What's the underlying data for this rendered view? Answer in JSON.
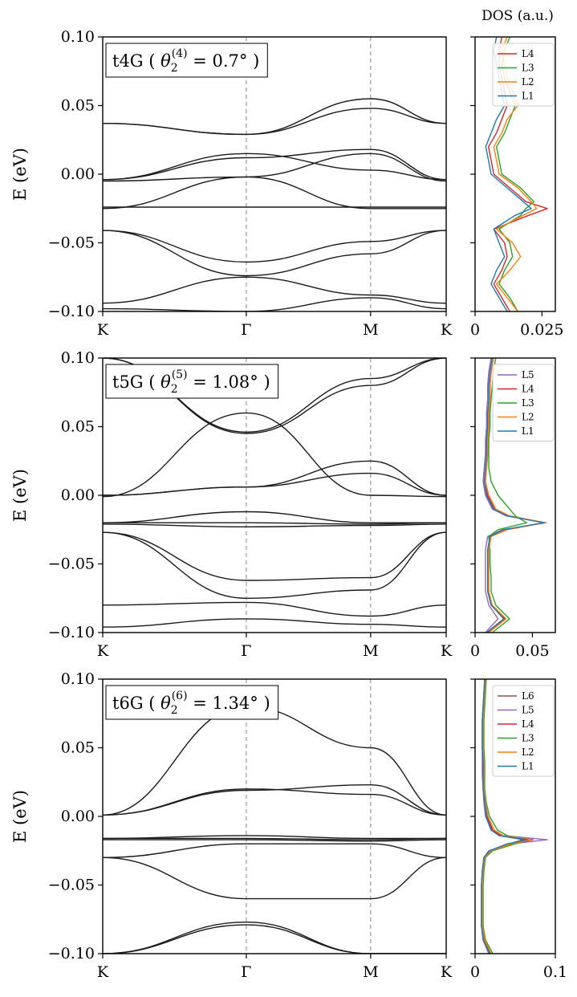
{
  "chart_data": {
    "type": "line",
    "dos_title": "DOS (a.u.)",
    "panels": [
      {
        "name": "t4G",
        "annotation": {
          "prefix": "t4G (",
          "theta": "θ",
          "sub": "2",
          "sup": "(4)",
          "value": "= 0.7°",
          "close": ")"
        },
        "ylabel": "E (eV)",
        "ylim": [
          -0.1,
          0.1
        ],
        "yticks": [
          0.1,
          0.05,
          0.0,
          -0.05,
          -0.1
        ],
        "yticklabels": [
          "0.10",
          "0.05",
          "0.00",
          "−0.05",
          "−0.10"
        ],
        "xticklabels": [
          "K",
          "Γ",
          "M",
          "K"
        ],
        "band_anchors": [
          [
            0.037,
            0.029,
            0.055,
            0.037
          ],
          [
            0.037,
            0.029,
            0.048,
            0.037
          ],
          [
            -0.004,
            0.015,
            0.003,
            -0.004
          ],
          [
            -0.004,
            0.012,
            0.018,
            -0.004
          ],
          [
            -0.005,
            -0.002,
            0.015,
            -0.005
          ],
          [
            -0.024,
            -0.024,
            -0.024,
            -0.024
          ],
          [
            -0.025,
            -0.002,
            -0.025,
            -0.025
          ],
          [
            -0.041,
            -0.064,
            -0.049,
            -0.041
          ],
          [
            -0.041,
            -0.074,
            -0.058,
            -0.041
          ],
          [
            -0.094,
            -0.075,
            -0.088,
            -0.094
          ],
          [
            -0.098,
            -0.1,
            -0.09,
            -0.098
          ]
        ],
        "dos": {
          "energies": [
            -0.1,
            -0.09,
            -0.08,
            -0.07,
            -0.06,
            -0.05,
            -0.04,
            -0.03,
            -0.025,
            -0.02,
            -0.01,
            0.0,
            0.01,
            0.02,
            0.03,
            0.04,
            0.05,
            0.06,
            0.07,
            0.08,
            0.09,
            0.1
          ],
          "xlim": [
            0,
            0.03
          ],
          "xticks": [
            0,
            0.025
          ],
          "xticklabels": [
            "0",
            "0.025"
          ],
          "series": [
            {
              "name": "L1",
              "color": "#1f77b4",
              "values": [
                0.012,
                0.009,
                0.006,
                0.008,
                0.011,
                0.009,
                0.007,
                0.015,
                0.021,
                0.018,
                0.012,
                0.006,
                0.005,
                0.004,
                0.006,
                0.008,
                0.011,
                0.01,
                0.009,
                0.008,
                0.007,
                0.008
              ]
            },
            {
              "name": "L2",
              "color": "#ff7f0e",
              "values": [
                0.016,
                0.012,
                0.008,
                0.013,
                0.017,
                0.014,
                0.008,
                0.018,
                0.023,
                0.021,
                0.016,
                0.009,
                0.008,
                0.007,
                0.01,
                0.012,
                0.016,
                0.014,
                0.012,
                0.011,
                0.01,
                0.012
              ]
            },
            {
              "name": "L3",
              "color": "#2ca02c",
              "values": [
                0.016,
                0.013,
                0.009,
                0.011,
                0.014,
                0.013,
                0.009,
                0.017,
                0.019,
                0.022,
                0.017,
                0.01,
                0.009,
                0.008,
                0.011,
                0.013,
                0.015,
                0.013,
                0.011,
                0.01,
                0.011,
                0.013
              ]
            },
            {
              "name": "L4",
              "color": "#d62728",
              "values": [
                0.013,
                0.01,
                0.007,
                0.01,
                0.012,
                0.011,
                0.007,
                0.02,
                0.027,
                0.019,
                0.013,
                0.007,
                0.006,
                0.005,
                0.008,
                0.01,
                0.012,
                0.011,
                0.01,
                0.009,
                0.009,
                0.01
              ]
            }
          ]
        }
      },
      {
        "name": "t5G",
        "annotation": {
          "prefix": "t5G (",
          "theta": "θ",
          "sub": "2",
          "sup": "(5)",
          "value": "= 1.08°",
          "close": ")"
        },
        "ylabel": "E (eV)",
        "ylim": [
          -0.1,
          0.1
        ],
        "yticks": [
          0.1,
          0.05,
          0.0,
          -0.05,
          -0.1
        ],
        "yticklabels": [
          "0.10",
          "0.05",
          "0.00",
          "−0.05",
          "−0.10"
        ],
        "xticklabels": [
          "K",
          "Γ",
          "M",
          "K"
        ],
        "band_anchors": [
          [
            0.1,
            0.045,
            0.08,
            0.1
          ],
          [
            0.1,
            0.046,
            0.085,
            0.1
          ],
          [
            0.0,
            0.006,
            0.016,
            0.0
          ],
          [
            0.0,
            0.006,
            0.025,
            0.0
          ],
          [
            -0.001,
            0.06,
            0.0,
            -0.001
          ],
          [
            -0.02,
            -0.02,
            -0.021,
            -0.02
          ],
          [
            -0.021,
            -0.023,
            -0.022,
            -0.021
          ],
          [
            -0.02,
            -0.012,
            -0.02,
            -0.02
          ],
          [
            -0.027,
            -0.075,
            -0.069,
            -0.027
          ],
          [
            -0.027,
            -0.062,
            -0.06,
            -0.027
          ],
          [
            -0.08,
            -0.078,
            -0.088,
            -0.08
          ],
          [
            -0.096,
            -0.09,
            -0.094,
            -0.096
          ]
        ],
        "dos": {
          "energies": [
            -0.1,
            -0.09,
            -0.08,
            -0.07,
            -0.06,
            -0.05,
            -0.04,
            -0.03,
            -0.025,
            -0.02,
            -0.015,
            -0.01,
            0.0,
            0.01,
            0.02,
            0.03,
            0.04,
            0.05,
            0.06,
            0.07,
            0.08,
            0.09,
            0.1
          ],
          "xlim": [
            0,
            0.07
          ],
          "xticks": [
            0,
            0.05
          ],
          "xticklabels": [
            "0",
            "0.05"
          ],
          "series": [
            {
              "name": "L1",
              "color": "#1f77b4",
              "values": [
                0.01,
                0.025,
                0.014,
                0.011,
                0.011,
                0.011,
                0.011,
                0.013,
                0.025,
                0.06,
                0.028,
                0.016,
                0.01,
                0.008,
                0.009,
                0.01,
                0.01,
                0.011,
                0.011,
                0.012,
                0.012,
                0.013,
                0.015
              ]
            },
            {
              "name": "L2",
              "color": "#ff7f0e",
              "values": [
                0.012,
                0.027,
                0.015,
                0.012,
                0.012,
                0.012,
                0.012,
                0.014,
                0.028,
                0.061,
                0.03,
                0.018,
                0.012,
                0.009,
                0.01,
                0.011,
                0.011,
                0.012,
                0.012,
                0.013,
                0.013,
                0.014,
                0.016
              ]
            },
            {
              "name": "L3",
              "color": "#2ca02c",
              "values": [
                0.015,
                0.03,
                0.018,
                0.014,
                0.014,
                0.013,
                0.013,
                0.012,
                0.02,
                0.045,
                0.035,
                0.03,
                0.02,
                0.014,
                0.012,
                0.012,
                0.012,
                0.013,
                0.013,
                0.014,
                0.015,
                0.016,
                0.018
              ]
            },
            {
              "name": "L4",
              "color": "#d62728",
              "values": [
                0.011,
                0.026,
                0.014,
                0.011,
                0.011,
                0.011,
                0.011,
                0.013,
                0.027,
                0.06,
                0.029,
                0.017,
                0.011,
                0.009,
                0.01,
                0.011,
                0.011,
                0.012,
                0.012,
                0.013,
                0.013,
                0.014,
                0.016
              ]
            },
            {
              "name": "L5",
              "color": "#9467bd",
              "values": [
                0.009,
                0.02,
                0.012,
                0.009,
                0.009,
                0.009,
                0.009,
                0.011,
                0.024,
                0.062,
                0.027,
                0.015,
                0.009,
                0.007,
                0.008,
                0.009,
                0.009,
                0.01,
                0.01,
                0.011,
                0.011,
                0.012,
                0.014
              ]
            }
          ]
        }
      },
      {
        "name": "t6G",
        "annotation": {
          "prefix": "t6G (",
          "theta": "θ",
          "sub": "2",
          "sup": "(6)",
          "value": "= 1.34°",
          "close": ")"
        },
        "ylabel": "E (eV)",
        "ylim": [
          -0.1,
          0.1
        ],
        "yticks": [
          0.1,
          0.05,
          0.0,
          -0.05,
          -0.1
        ],
        "yticklabels": [
          "0.10",
          "0.05",
          "0.00",
          "−0.05",
          "−0.10"
        ],
        "xticklabels": [
          "K",
          "Γ",
          "M",
          "K"
        ],
        "band_anchors": [
          [
            0.001,
            0.019,
            0.023,
            0.001
          ],
          [
            0.001,
            0.02,
            0.016,
            0.001
          ],
          [
            0.001,
            0.08,
            0.05,
            0.001
          ],
          [
            -0.016,
            -0.014,
            -0.016,
            -0.016
          ],
          [
            -0.017,
            -0.017,
            -0.018,
            -0.017
          ],
          [
            -0.016,
            -0.016,
            -0.017,
            -0.016
          ],
          [
            -0.03,
            -0.06,
            -0.06,
            -0.03
          ],
          [
            -0.03,
            -0.02,
            -0.02,
            -0.03
          ],
          [
            -0.1,
            -0.077,
            -0.1,
            -0.1
          ],
          [
            -0.1,
            -0.079,
            -0.1,
            -0.1
          ]
        ],
        "dos": {
          "energies": [
            -0.1,
            -0.09,
            -0.08,
            -0.07,
            -0.06,
            -0.05,
            -0.04,
            -0.03,
            -0.025,
            -0.02,
            -0.017,
            -0.014,
            -0.01,
            0.0,
            0.01,
            0.02,
            0.03,
            0.04,
            0.05,
            0.06,
            0.07,
            0.08,
            0.09,
            0.1
          ],
          "xlim": [
            0,
            0.1
          ],
          "xticks": [
            0,
            0.1
          ],
          "xticklabels": [
            "0",
            "0.1"
          ],
          "series": [
            {
              "name": "L1",
              "color": "#1f77b4",
              "values": [
                0.018,
                0.01,
                0.008,
                0.008,
                0.008,
                0.008,
                0.009,
                0.011,
                0.018,
                0.04,
                0.065,
                0.03,
                0.02,
                0.014,
                0.012,
                0.01,
                0.01,
                0.01,
                0.009,
                0.009,
                0.009,
                0.01,
                0.011,
                0.012
              ]
            },
            {
              "name": "L2",
              "color": "#ff7f0e",
              "values": [
                0.02,
                0.012,
                0.009,
                0.009,
                0.009,
                0.009,
                0.01,
                0.012,
                0.02,
                0.045,
                0.07,
                0.035,
                0.024,
                0.016,
                0.013,
                0.011,
                0.011,
                0.011,
                0.01,
                0.01,
                0.01,
                0.011,
                0.012,
                0.013
              ]
            },
            {
              "name": "L3",
              "color": "#2ca02c",
              "values": [
                0.022,
                0.013,
                0.01,
                0.01,
                0.01,
                0.01,
                0.011,
                0.013,
                0.022,
                0.05,
                0.068,
                0.04,
                0.028,
                0.018,
                0.014,
                0.012,
                0.012,
                0.012,
                0.011,
                0.011,
                0.011,
                0.012,
                0.013,
                0.014
              ]
            },
            {
              "name": "L4",
              "color": "#d62728",
              "values": [
                0.019,
                0.011,
                0.009,
                0.009,
                0.009,
                0.009,
                0.01,
                0.012,
                0.019,
                0.048,
                0.072,
                0.032,
                0.022,
                0.015,
                0.012,
                0.011,
                0.01,
                0.01,
                0.01,
                0.01,
                0.01,
                0.011,
                0.012,
                0.013
              ]
            },
            {
              "name": "L5",
              "color": "#9467bd",
              "values": [
                0.017,
                0.01,
                0.008,
                0.008,
                0.008,
                0.008,
                0.009,
                0.011,
                0.017,
                0.045,
                0.09,
                0.035,
                0.02,
                0.013,
                0.011,
                0.01,
                0.009,
                0.009,
                0.009,
                0.009,
                0.009,
                0.01,
                0.011,
                0.012
              ]
            },
            {
              "name": "L6",
              "color": "#8c564b",
              "values": [
                0.018,
                0.011,
                0.008,
                0.008,
                0.008,
                0.008,
                0.009,
                0.011,
                0.018,
                0.042,
                0.06,
                0.03,
                0.021,
                0.014,
                0.012,
                0.01,
                0.01,
                0.01,
                0.009,
                0.009,
                0.009,
                0.01,
                0.011,
                0.012
              ]
            }
          ]
        }
      }
    ]
  }
}
